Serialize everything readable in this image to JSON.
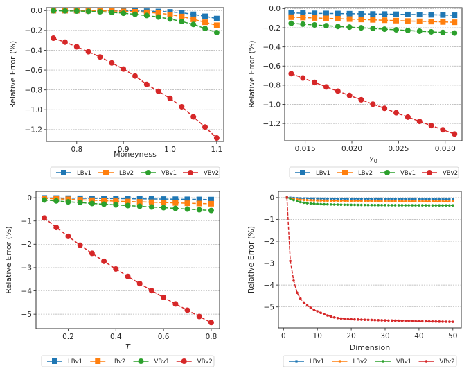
{
  "figure": {
    "ylabel_common": "Relative Error (%)"
  },
  "chart_data": [
    {
      "type": "line",
      "panel": "top-left",
      "title": "",
      "xlabel": "Moneyness",
      "xlabel_italic": false,
      "ylabel": "Relative Error (%)",
      "xlim": [
        0.735,
        1.115
      ],
      "ylim": [
        -1.32,
        0.03
      ],
      "xticks": [
        0.8,
        0.9,
        1.0,
        1.1
      ],
      "xtick_labels": [
        "0.8",
        "0.9",
        "1.0",
        "1.1"
      ],
      "yticks": [
        0.0,
        -0.2,
        -0.4,
        -0.6,
        -0.8,
        -1.0,
        -1.2
      ],
      "ytick_labels": [
        "0.0",
        "−0.2",
        "−0.4",
        "−0.6",
        "−0.8",
        "−1.0",
        "−1.2"
      ],
      "grid": "y",
      "legend": "below",
      "x": [
        0.75,
        0.775,
        0.8,
        0.825,
        0.85,
        0.875,
        0.9,
        0.925,
        0.95,
        0.975,
        1.0,
        1.025,
        1.05,
        1.075,
        1.1
      ],
      "series": [
        {
          "name": "LBv1",
          "color": "#1f77b4",
          "marker": "square",
          "values": [
            0.0,
            0.0,
            0.0,
            0.0,
            0.0,
            0.0,
            -0.002,
            -0.004,
            -0.006,
            -0.009,
            -0.013,
            -0.022,
            -0.038,
            -0.058,
            -0.08
          ]
        },
        {
          "name": "LBv2",
          "color": "#ff7f0e",
          "marker": "square",
          "values": [
            0.0,
            0.0,
            0.0,
            0.0,
            -0.002,
            -0.004,
            -0.008,
            -0.012,
            -0.018,
            -0.026,
            -0.04,
            -0.06,
            -0.088,
            -0.118,
            -0.148
          ]
        },
        {
          "name": "VBv1",
          "color": "#2ca02c",
          "marker": "circle",
          "values": [
            -0.002,
            -0.003,
            -0.005,
            -0.008,
            -0.012,
            -0.018,
            -0.027,
            -0.038,
            -0.05,
            -0.065,
            -0.085,
            -0.11,
            -0.14,
            -0.18,
            -0.222
          ]
        },
        {
          "name": "VBv2",
          "color": "#d62728",
          "marker": "circle",
          "values": [
            -0.278,
            -0.318,
            -0.365,
            -0.415,
            -0.468,
            -0.528,
            -0.59,
            -0.66,
            -0.745,
            -0.815,
            -0.885,
            -0.97,
            -1.072,
            -1.175,
            -1.285
          ]
        }
      ]
    },
    {
      "type": "line",
      "panel": "top-right",
      "title": "",
      "xlabel": "y0",
      "xlabel_italic": true,
      "ylabel": "Relative Error (%)",
      "xlim": [
        0.0128,
        0.0318
      ],
      "ylim": [
        -1.38,
        0.01
      ],
      "xticks": [
        0.015,
        0.02,
        0.025,
        0.03
      ],
      "xtick_labels": [
        "0.015",
        "0.020",
        "0.025",
        "0.030"
      ],
      "yticks": [
        0.0,
        -0.2,
        -0.4,
        -0.6,
        -0.8,
        -1.0,
        -1.2
      ],
      "ytick_labels": [
        "0.0",
        "−0.2",
        "−0.4",
        "−0.6",
        "−0.8",
        "−1.0",
        "−1.2"
      ],
      "grid": "y",
      "legend": "below",
      "x": [
        0.0135,
        0.01475,
        0.016,
        0.01725,
        0.0185,
        0.01975,
        0.021,
        0.02225,
        0.0235,
        0.02475,
        0.026,
        0.02725,
        0.0285,
        0.02975,
        0.031
      ],
      "series": [
        {
          "name": "LBv1",
          "color": "#1f77b4",
          "marker": "square",
          "values": [
            -0.047,
            -0.048,
            -0.05,
            -0.051,
            -0.052,
            -0.054,
            -0.055,
            -0.057,
            -0.058,
            -0.06,
            -0.062,
            -0.063,
            -0.065,
            -0.067,
            -0.07
          ]
        },
        {
          "name": "LBv2",
          "color": "#ff7f0e",
          "marker": "square",
          "values": [
            -0.09,
            -0.094,
            -0.098,
            -0.102,
            -0.106,
            -0.11,
            -0.114,
            -0.118,
            -0.122,
            -0.126,
            -0.13,
            -0.133,
            -0.136,
            -0.14,
            -0.143
          ]
        },
        {
          "name": "VBv1",
          "color": "#2ca02c",
          "marker": "circle",
          "values": [
            -0.155,
            -0.163,
            -0.171,
            -0.179,
            -0.187,
            -0.194,
            -0.201,
            -0.208,
            -0.215,
            -0.222,
            -0.229,
            -0.236,
            -0.243,
            -0.249,
            -0.255
          ]
        },
        {
          "name": "VBv2",
          "color": "#d62728",
          "marker": "circle",
          "values": [
            -0.68,
            -0.725,
            -0.77,
            -0.818,
            -0.862,
            -0.908,
            -0.952,
            -0.998,
            -1.042,
            -1.088,
            -1.133,
            -1.178,
            -1.222,
            -1.266,
            -1.31
          ]
        }
      ]
    },
    {
      "type": "line",
      "panel": "bottom-left",
      "title": "",
      "xlabel": "T",
      "xlabel_italic": true,
      "ylabel": "Relative Error (%)",
      "xlim": [
        0.065,
        0.835
      ],
      "ylim": [
        -5.62,
        0.27
      ],
      "xticks": [
        0.2,
        0.4,
        0.6,
        0.8
      ],
      "xtick_labels": [
        "0.2",
        "0.4",
        "0.6",
        "0.8"
      ],
      "yticks": [
        0,
        -1,
        -2,
        -3,
        -4,
        -5
      ],
      "ytick_labels": [
        "0",
        "−1",
        "−2",
        "−3",
        "−4",
        "−5"
      ],
      "grid": "y",
      "legend": "below",
      "x": [
        0.1,
        0.15,
        0.2,
        0.25,
        0.3,
        0.35,
        0.4,
        0.45,
        0.5,
        0.55,
        0.6,
        0.65,
        0.7,
        0.75,
        0.8
      ],
      "series": [
        {
          "name": "LBv1",
          "color": "#1f77b4",
          "marker": "square",
          "values": [
            -0.01,
            -0.015,
            -0.02,
            -0.025,
            -0.03,
            -0.035,
            -0.04,
            -0.045,
            -0.05,
            -0.055,
            -0.06,
            -0.065,
            -0.07,
            -0.075,
            -0.08
          ]
        },
        {
          "name": "LBv2",
          "color": "#ff7f0e",
          "marker": "square",
          "values": [
            -0.03,
            -0.05,
            -0.07,
            -0.09,
            -0.11,
            -0.13,
            -0.15,
            -0.165,
            -0.18,
            -0.195,
            -0.21,
            -0.225,
            -0.24,
            -0.25,
            -0.26
          ]
        },
        {
          "name": "VBv1",
          "color": "#2ca02c",
          "marker": "circle",
          "values": [
            -0.1,
            -0.14,
            -0.18,
            -0.21,
            -0.25,
            -0.28,
            -0.31,
            -0.34,
            -0.37,
            -0.4,
            -0.43,
            -0.46,
            -0.49,
            -0.52,
            -0.55
          ]
        },
        {
          "name": "VBv2",
          "color": "#d62728",
          "marker": "circle",
          "values": [
            -0.87,
            -1.28,
            -1.66,
            -2.04,
            -2.39,
            -2.73,
            -3.06,
            -3.38,
            -3.69,
            -3.99,
            -4.28,
            -4.56,
            -4.83,
            -5.1,
            -5.36
          ]
        }
      ]
    },
    {
      "type": "line",
      "panel": "bottom-right",
      "title": "",
      "xlabel": "Dimension",
      "xlabel_italic": false,
      "ylabel": "Relative Error (%)",
      "xlim": [
        -1.5,
        52.5
      ],
      "ylim": [
        -5.96,
        0.28
      ],
      "xticks": [
        0,
        10,
        20,
        30,
        40,
        50
      ],
      "xtick_labels": [
        "0",
        "10",
        "20",
        "30",
        "40",
        "50"
      ],
      "yticks": [
        0,
        -1,
        -2,
        -3,
        -4,
        -5
      ],
      "ytick_labels": [
        "0",
        "−1",
        "−2",
        "−3",
        "−4",
        "−5"
      ],
      "grid": "y",
      "legend": "below",
      "x": [
        1,
        2,
        3,
        4,
        5,
        6,
        7,
        8,
        9,
        10,
        11,
        12,
        13,
        14,
        15,
        16,
        17,
        18,
        19,
        20,
        21,
        22,
        23,
        24,
        25,
        26,
        27,
        28,
        29,
        30,
        31,
        32,
        33,
        34,
        35,
        36,
        37,
        38,
        39,
        40,
        41,
        42,
        43,
        44,
        45,
        46,
        47,
        48,
        49,
        50
      ],
      "series": [
        {
          "name": "LBv1",
          "color": "#1f77b4",
          "marker": "small-square",
          "values": [
            0,
            -0.01,
            -0.02,
            -0.03,
            -0.035,
            -0.04,
            -0.042,
            -0.044,
            -0.046,
            -0.048,
            -0.05,
            -0.051,
            -0.052,
            -0.053,
            -0.054,
            -0.055,
            -0.056,
            -0.057,
            -0.058,
            -0.058,
            -0.059,
            -0.059,
            -0.06,
            -0.06,
            -0.061,
            -0.061,
            -0.062,
            -0.062,
            -0.063,
            -0.063,
            -0.064,
            -0.064,
            -0.065,
            -0.065,
            -0.066,
            -0.066,
            -0.067,
            -0.067,
            -0.068,
            -0.068,
            -0.069,
            -0.069,
            -0.07,
            -0.07,
            -0.071,
            -0.071,
            -0.072,
            -0.072,
            -0.073,
            -0.073
          ]
        },
        {
          "name": "LBv2",
          "color": "#ff7f0e",
          "marker": "small-square",
          "values": [
            0,
            -0.04,
            -0.07,
            -0.09,
            -0.105,
            -0.115,
            -0.122,
            -0.128,
            -0.133,
            -0.137,
            -0.14,
            -0.143,
            -0.145,
            -0.147,
            -0.149,
            -0.15,
            -0.152,
            -0.153,
            -0.154,
            -0.155,
            -0.156,
            -0.157,
            -0.158,
            -0.159,
            -0.16,
            -0.16,
            -0.161,
            -0.162,
            -0.162,
            -0.163,
            -0.164,
            -0.164,
            -0.165,
            -0.165,
            -0.166,
            -0.166,
            -0.167,
            -0.167,
            -0.168,
            -0.168,
            -0.169,
            -0.169,
            -0.17,
            -0.17,
            -0.171,
            -0.171,
            -0.172,
            -0.172,
            -0.173,
            -0.173
          ]
        },
        {
          "name": "VBv1",
          "color": "#2ca02c",
          "marker": "small-circle",
          "values": [
            0,
            -0.05,
            -0.12,
            -0.17,
            -0.21,
            -0.24,
            -0.26,
            -0.275,
            -0.285,
            -0.295,
            -0.302,
            -0.308,
            -0.313,
            -0.318,
            -0.322,
            -0.325,
            -0.328,
            -0.331,
            -0.333,
            -0.335,
            -0.337,
            -0.339,
            -0.341,
            -0.342,
            -0.344,
            -0.345,
            -0.346,
            -0.347,
            -0.348,
            -0.349,
            -0.35,
            -0.351,
            -0.352,
            -0.352,
            -0.353,
            -0.354,
            -0.354,
            -0.355,
            -0.356,
            -0.356,
            -0.357,
            -0.357,
            -0.358,
            -0.358,
            -0.359,
            -0.359,
            -0.36,
            -0.36,
            -0.361,
            -0.361
          ]
        },
        {
          "name": "VBv2",
          "color": "#d62728",
          "marker": "small-circle",
          "values": [
            0,
            -2.9,
            -3.8,
            -4.35,
            -4.62,
            -4.8,
            -4.93,
            -5.04,
            -5.13,
            -5.2,
            -5.27,
            -5.33,
            -5.39,
            -5.44,
            -5.48,
            -5.51,
            -5.53,
            -5.545,
            -5.555,
            -5.56,
            -5.57,
            -5.575,
            -5.58,
            -5.585,
            -5.59,
            -5.595,
            -5.6,
            -5.605,
            -5.61,
            -5.615,
            -5.62,
            -5.623,
            -5.626,
            -5.63,
            -5.633,
            -5.636,
            -5.64,
            -5.643,
            -5.646,
            -5.65,
            -5.653,
            -5.656,
            -5.66,
            -5.663,
            -5.666,
            -5.67,
            -5.672,
            -5.675,
            -5.678,
            -5.68
          ]
        }
      ]
    }
  ]
}
